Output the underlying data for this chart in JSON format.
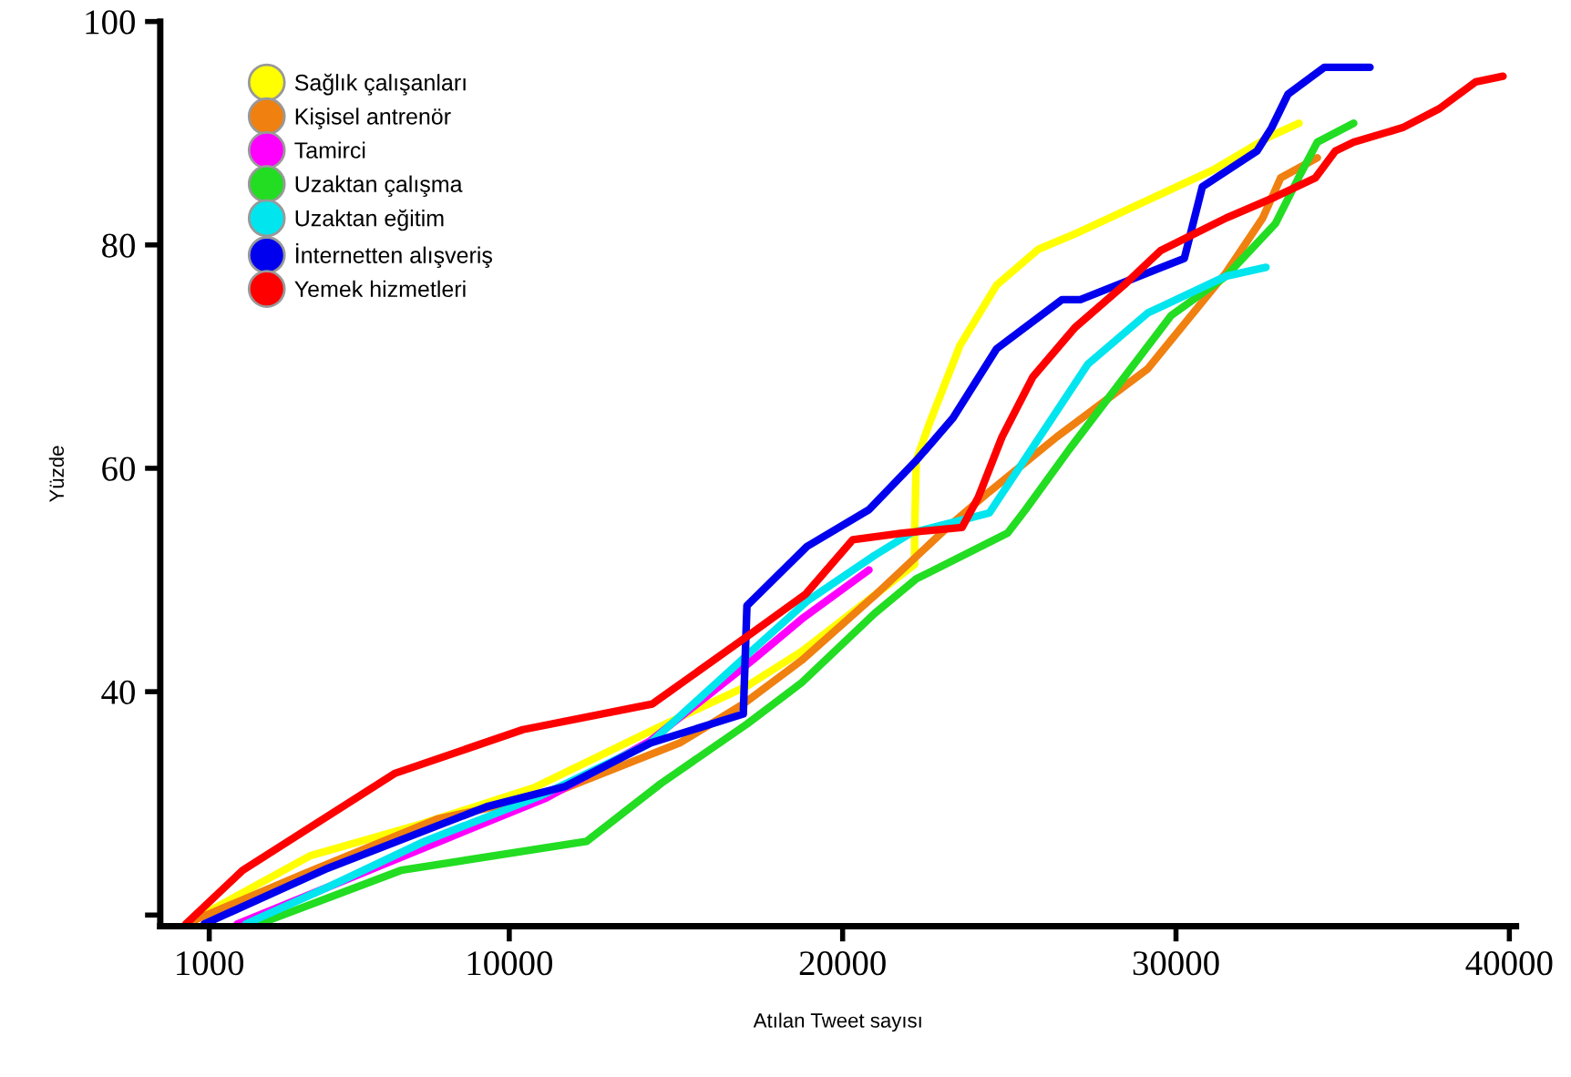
{
  "chart_data": {
    "type": "line",
    "xlabel": "Atılan Tweet sayısı",
    "ylabel": "Yüzde",
    "xlim": [
      -470,
      40200
    ],
    "ylim": [
      19,
      100
    ],
    "xticks": [
      1000,
      10000,
      20000,
      30000,
      40000
    ],
    "yticks": [
      {
        "value": 20,
        "label": null
      },
      40,
      60,
      80,
      100
    ],
    "grid": false,
    "legend": "top left",
    "marker": "none",
    "line_style": "solid",
    "series": [
      {
        "name": "Sağlık çalışanları",
        "color": "#ffff00",
        "x": [
          300,
          4020,
          7300,
          10740,
          14400,
          17130,
          18770,
          22160,
          22160,
          22210,
          22600,
          23520,
          24620,
          25870,
          27130,
          29150,
          31170,
          32810,
          33690
        ],
        "values": [
          19.2,
          25.3,
          28.1,
          31.4,
          36.7,
          40.5,
          43.6,
          51.4,
          54.2,
          60.7,
          64.0,
          71.0,
          76.4,
          79.6,
          81.2,
          84.0,
          86.8,
          89.7,
          90.9
        ]
      },
      {
        "name": "Kişisel antrenör",
        "color": "#f08010",
        "x": [
          360,
          3850,
          7840,
          11120,
          15110,
          17020,
          18770,
          20960,
          23140,
          24400,
          26420,
          29150,
          31500,
          32600,
          33140,
          34240
        ],
        "values": [
          19.3,
          23.7,
          28.6,
          30.7,
          35.4,
          38.9,
          42.8,
          48.6,
          54.7,
          57.9,
          62.8,
          68.9,
          77.5,
          82.4,
          86.0,
          87.8
        ]
      },
      {
        "name": "Tamirci",
        "color": "#ff00ff",
        "x": [
          1840,
          4560,
          7840,
          11120,
          14230,
          17290,
          18770,
          20790
        ],
        "values": [
          19.2,
          22.5,
          26.5,
          30.5,
          35.6,
          42.8,
          46.5,
          50.9
        ]
      },
      {
        "name": "Uzaktan çalışma",
        "color": "#22dd22",
        "x": [
          2490,
          6750,
          12320,
          14560,
          17130,
          18770,
          20960,
          22210,
          24950,
          25490,
          26800,
          29860,
          31500,
          32980,
          33690,
          34240,
          35330
        ],
        "values": [
          19.2,
          24.0,
          26.6,
          31.8,
          37.1,
          40.8,
          47.0,
          50.1,
          54.2,
          56.3,
          61.7,
          73.7,
          77.2,
          81.9,
          86.1,
          89.2,
          90.9
        ]
      },
      {
        "name": "Uzaktan eğitim",
        "color": "#00e5ee",
        "x": [
          2100,
          4560,
          7460,
          10960,
          14230,
          17290,
          18930,
          20960,
          22050,
          24400,
          27350,
          29150,
          31500,
          32700
        ],
        "values": [
          19.2,
          22.5,
          26.6,
          30.7,
          35.4,
          43.7,
          48.1,
          52.2,
          54.2,
          56.0,
          69.3,
          73.9,
          77.2,
          78.0
        ]
      },
      {
        "name": "İnternetten alışveriş",
        "color": "#0000ee",
        "x": [
          850,
          4560,
          9320,
          11670,
          14230,
          17020,
          17130,
          18930,
          20790,
          22210,
          23310,
          24620,
          26580,
          27130,
          30250,
          30790,
          32430,
          32870,
          33360,
          34450,
          35820
        ],
        "values": [
          19.2,
          24.2,
          29.7,
          31.5,
          35.4,
          38.0,
          47.7,
          53.0,
          56.3,
          60.7,
          64.5,
          70.7,
          75.1,
          75.1,
          78.8,
          85.2,
          88.4,
          90.5,
          93.5,
          95.9,
          95.9
        ]
      },
      {
        "name": "Yemek hizmetleri",
        "color": "#ff0000",
        "x": [
          300,
          2000,
          6580,
          10410,
          14290,
          17300,
          18880,
          20300,
          21780,
          23580,
          24070,
          24780,
          25710,
          26970,
          28440,
          29540,
          31500,
          32980,
          34180,
          34780,
          35330,
          36800,
          37900,
          38990,
          39810
        ],
        "values": [
          19.2,
          24.0,
          32.7,
          36.6,
          38.9,
          45.3,
          48.7,
          53.6,
          54.2,
          54.7,
          57.4,
          62.8,
          68.2,
          72.6,
          76.4,
          79.5,
          82.4,
          84.3,
          86.0,
          88.4,
          89.2,
          90.5,
          92.2,
          94.6,
          95.1
        ]
      }
    ]
  }
}
